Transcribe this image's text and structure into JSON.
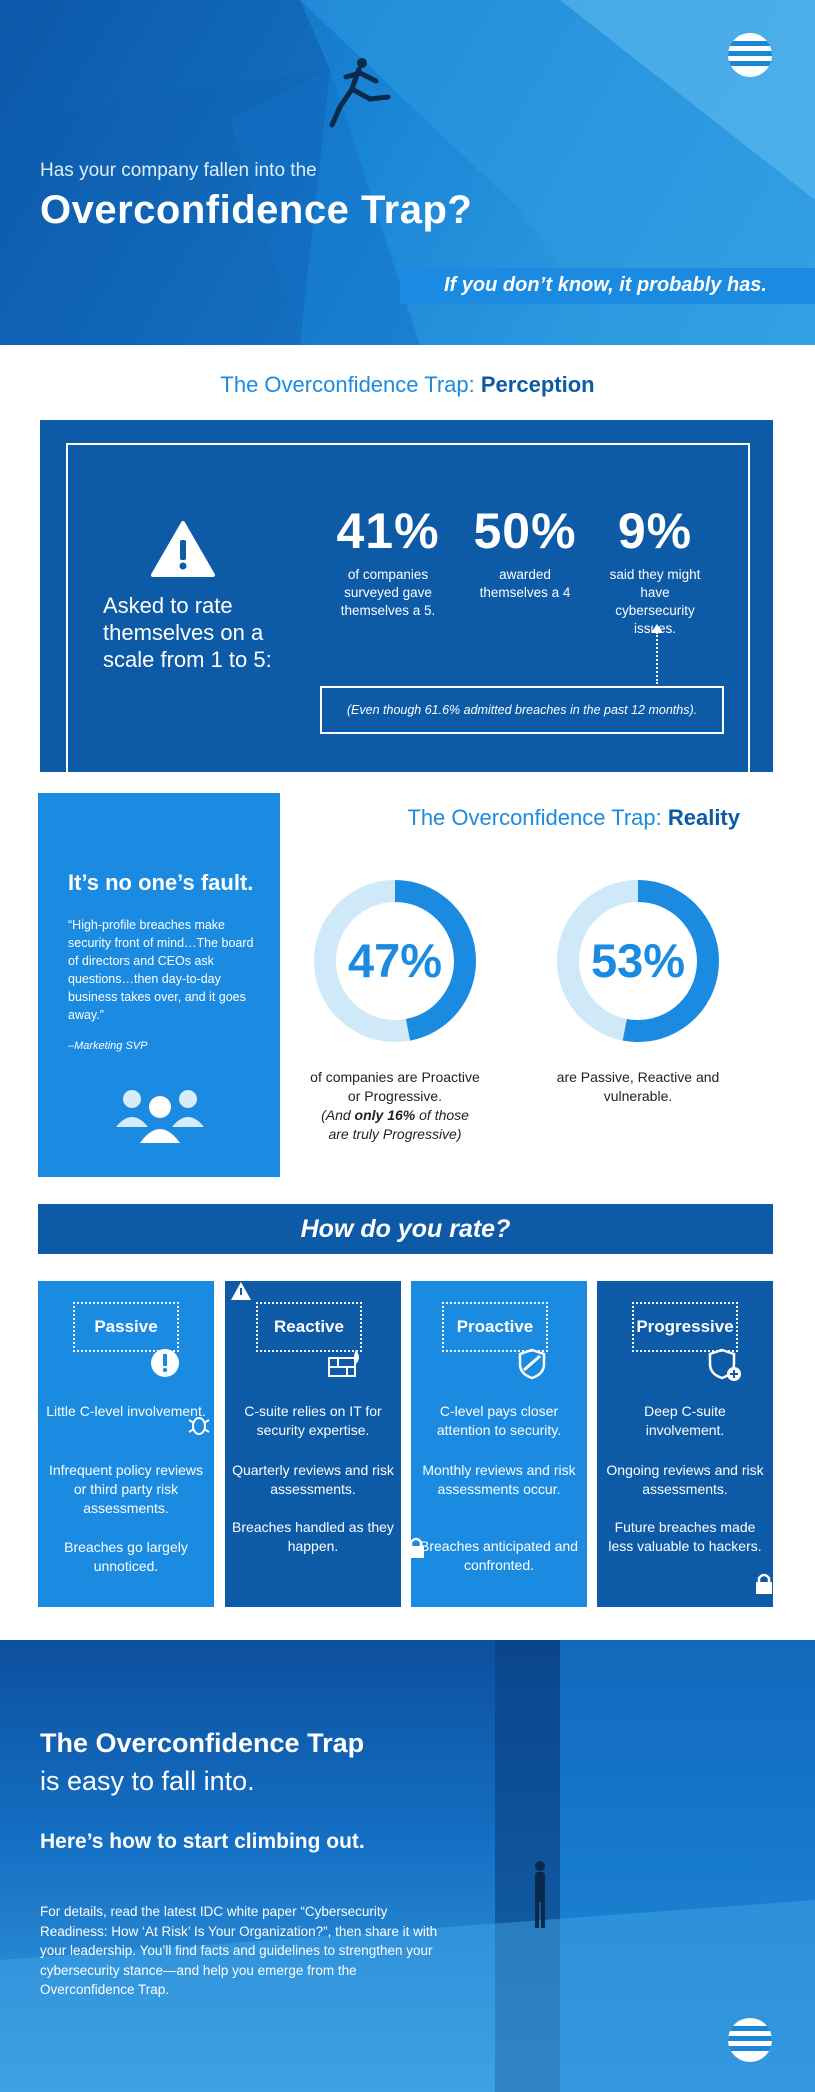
{
  "hero": {
    "question": "Has your company fallen into the",
    "title": "Overconfidence Trap?",
    "subtitle": "If you don’t know, it probably has."
  },
  "perception": {
    "heading_prefix": "The Overconfidence Trap: ",
    "heading_emphasis": "Perception",
    "asked": "Asked to rate themselves on a scale from 1 to 5:",
    "stats": [
      {
        "value": "41%",
        "caption": "of companies surveyed gave themselves a 5."
      },
      {
        "value": "50%",
        "caption": "awarded themselves a 4"
      },
      {
        "value": "9%",
        "caption": "said they might have cybersecurity issues."
      }
    ],
    "note": "(Even though 61.6% admitted breaches in the past 12 months)."
  },
  "reality": {
    "heading_prefix": "The Overconfidence Trap: ",
    "heading_emphasis": "Reality",
    "fault_title": "It’s no one’s fault.",
    "quote": "“High-profile breaches make security front of mind…The board of directors and CEOs ask questions…then day-to-day business takes over, and it goes away.”",
    "attribution": "–Marketing SVP",
    "donut1": {
      "value": "47%",
      "fraction": 0.47,
      "caption": "of companies are Proactive or Progressive.",
      "caption_note_a": "(And ",
      "caption_note_b": "only 16%",
      "caption_note_c": " of those are truly Progressive)"
    },
    "donut2": {
      "value": "53%",
      "fraction": 0.53,
      "caption": "are Passive, Reactive and vulnerable."
    }
  },
  "rate": {
    "title": "How do you rate?",
    "cards": [
      {
        "label": "Passive",
        "lines": [
          "Little C-level involvement.",
          "Infrequent policy reviews or third party risk assessments.",
          "Breaches go largely unnoticed."
        ],
        "color": "#1a8be0"
      },
      {
        "label": "Reactive",
        "lines": [
          "C-suite relies on IT for security expertise.",
          "Quarterly reviews and risk assessments.",
          "Breaches handled as they happen."
        ],
        "color": "#0d5aa7"
      },
      {
        "label": "Proactive",
        "lines": [
          "C-level pays closer attention to security.",
          "Monthly reviews and risk assessments occur.",
          "Breaches anticipated and confronted."
        ],
        "color": "#1a8be0"
      },
      {
        "label": "Progressive",
        "lines": [
          "Deep C-suite involvement.",
          "Ongoing reviews and risk assessments.",
          "Future breaches made less valuable to hackers."
        ],
        "color": "#0d5aa7"
      }
    ]
  },
  "closing": {
    "title": "The Overconfidence Trap",
    "subtitle": "is easy to fall into.",
    "lead": "Here’s how to start climbing out.",
    "body": "For details, read the latest IDC white paper “Cybersecurity Readiness: How ‘At Risk’ Is Your Organization?”, then share it with your leadership. You’ll find facts and guidelines to strengthen your cybersecurity stance—and help you emerge from the Overconfidence Trap."
  },
  "colors": {
    "dark_blue": "#0d5aa7",
    "mid_blue": "#1a8be0",
    "light_blue": "#cfe9f8"
  },
  "icons": [
    "att-logo",
    "jumping-man-illustration",
    "warning-icon",
    "people-icon",
    "bug-icon",
    "brick-wall-fire-icon",
    "shield-icon",
    "shield-plus-icon",
    "lock-icon",
    "standing-man-illustration"
  ]
}
